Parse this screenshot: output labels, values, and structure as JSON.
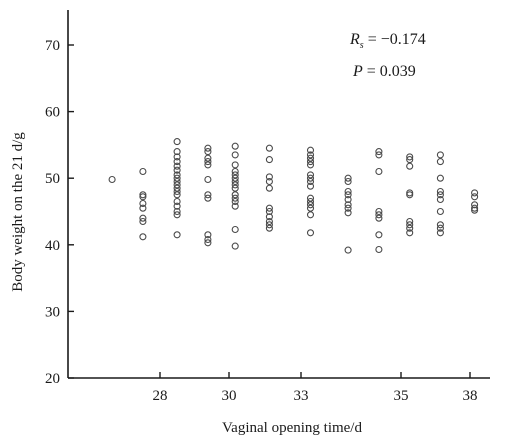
{
  "chart_data": {
    "type": "scatter",
    "title": "",
    "xlabel": "Vaginal opening time/d",
    "ylabel": "Body weight on the 21 d/g",
    "x_ticks": [
      "28",
      "30",
      "33",
      "35",
      "38"
    ],
    "ylim": [
      20,
      75
    ],
    "y_ticks": [
      20,
      30,
      40,
      50,
      60,
      70
    ],
    "grid": false,
    "marker": "open-circle",
    "marker_color": "#4a4a4a",
    "annotations": {
      "rs_symbol": "R",
      "rs_sub": "s",
      "rs_value": " = −0.174",
      "p_symbol": "P",
      "p_value": " = 0.039"
    },
    "columns": [
      {
        "x": 26.6,
        "y": [
          49.8
        ]
      },
      {
        "x": 27.5,
        "y": [
          51.0,
          47.5,
          47.2,
          46.2,
          45.5,
          44.0,
          43.5,
          41.2
        ]
      },
      {
        "x": 28.5,
        "y": [
          55.5,
          54.0,
          53.2,
          52.5,
          51.8,
          51.2,
          50.5,
          50.0,
          49.5,
          49.0,
          48.5,
          48.0,
          47.5,
          46.5,
          45.8,
          45.0,
          44.5,
          41.5
        ]
      },
      {
        "x": 29.4,
        "y": [
          54.5,
          54.0,
          53.0,
          52.5,
          52.0,
          49.8,
          47.5,
          47.0,
          41.5,
          40.8,
          40.3
        ]
      },
      {
        "x": 30.2,
        "y": [
          54.8,
          53.5,
          52.0,
          51.0,
          50.5,
          50.0,
          49.5,
          49.0,
          48.5,
          47.5,
          47.0,
          46.5,
          45.8,
          42.3,
          39.8
        ]
      },
      {
        "x": 31.2,
        "y": [
          54.5,
          52.8,
          50.2,
          49.5,
          48.5,
          45.5,
          45.0,
          44.2,
          43.5,
          43.0,
          42.5
        ]
      },
      {
        "x": 32.4,
        "y": [
          54.2,
          53.5,
          53.0,
          52.5,
          52.0,
          50.5,
          50.0,
          49.5,
          48.8,
          47.0,
          46.5,
          46.0,
          45.5,
          44.5,
          41.8
        ]
      },
      {
        "x": 33.5,
        "y": [
          50.0,
          49.5,
          48.0,
          47.5,
          46.8,
          46.0,
          45.5,
          44.8,
          39.2
        ]
      },
      {
        "x": 34.4,
        "y": [
          54.0,
          53.5,
          51.0,
          45.0,
          44.5,
          44.0,
          41.5,
          39.3
        ]
      },
      {
        "x": 35.3,
        "y": [
          53.2,
          52.8,
          51.8,
          47.8,
          47.5,
          43.5,
          43.0,
          42.5,
          41.8
        ]
      },
      {
        "x": 36.2,
        "y": [
          53.5,
          52.5,
          50.0,
          48.0,
          47.5,
          46.8,
          45.0,
          43.0,
          42.5,
          41.8
        ]
      },
      {
        "x": 37.2,
        "y": [
          47.8,
          47.2,
          46.0,
          45.5,
          45.2
        ]
      }
    ]
  }
}
